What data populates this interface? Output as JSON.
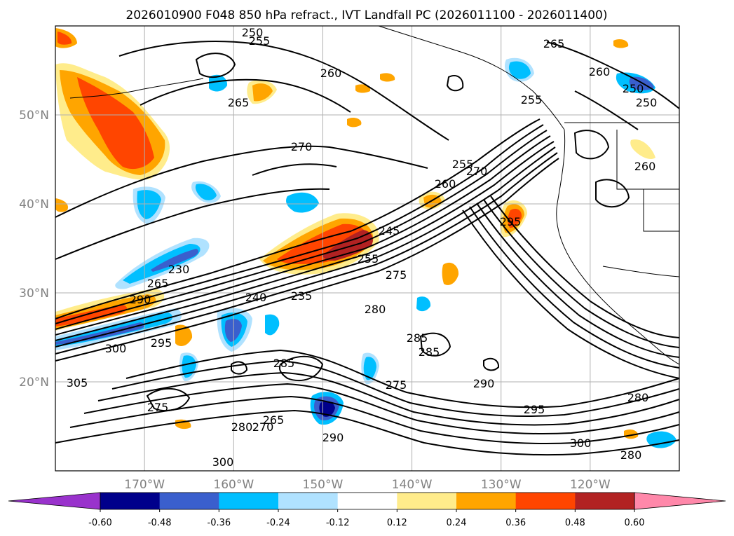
{
  "chart_data": {
    "type": "heatmap",
    "title": "2026010900 F048 850 hPa refract., IVT Landfall PC (2026011100 - 2026011400)",
    "map": {
      "lon_range": [
        -180,
        -110
      ],
      "lat_range": [
        10,
        60
      ],
      "grid": true
    },
    "x_ticks": [
      "170°W",
      "160°W",
      "150°W",
      "140°W",
      "130°W",
      "120°W"
    ],
    "y_ticks": [
      "50°N",
      "40°N",
      "30°N",
      "20°N"
    ],
    "colorbar": {
      "ticks": [
        "-0.60",
        "-0.48",
        "-0.36",
        "-0.24",
        "-0.12",
        "0.12",
        "0.24",
        "0.36",
        "0.48",
        "0.60"
      ],
      "colors": [
        "#9932cc",
        "#00008b",
        "#3a5fcd",
        "#00bfff",
        "#b0e2ff",
        "#ffffff",
        "#ffec8b",
        "#ffa500",
        "#ff4500",
        "#b22222",
        "#ff88aa"
      ],
      "extend": "both"
    },
    "contour_labels": [
      "250",
      "255",
      "260",
      "265",
      "270",
      "275",
      "280",
      "285",
      "290",
      "295",
      "300",
      "305",
      "230",
      "235",
      "240",
      "245",
      "255",
      "260",
      "265",
      "275",
      "280",
      "285",
      "290",
      "295",
      "300",
      "270",
      "280",
      "285",
      "290",
      "295",
      "300",
      "280",
      "275",
      "265",
      "270",
      "260",
      "255",
      "265",
      "250",
      "260",
      "250",
      "255"
    ]
  }
}
